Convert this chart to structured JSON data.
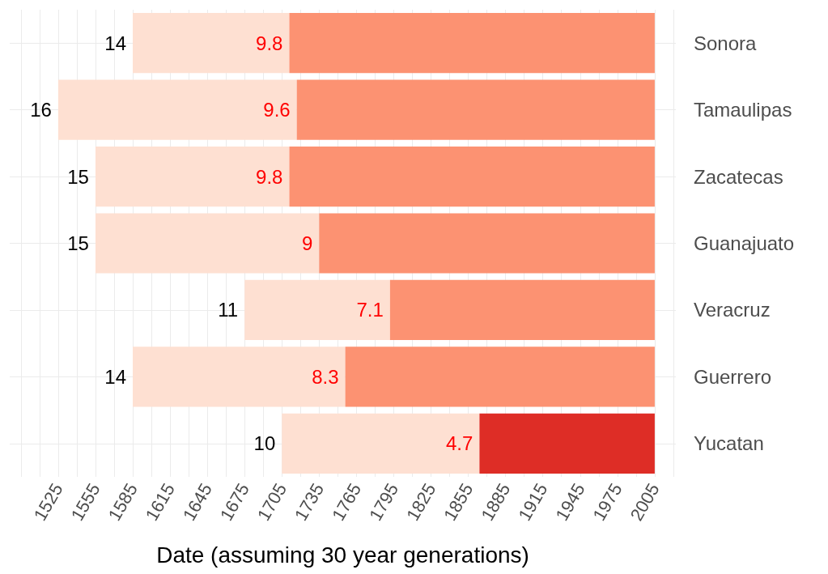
{
  "chart_data": {
    "type": "bar",
    "orientation": "horizontal",
    "xlabel": "Date (assuming 30 year generations)",
    "categories": [
      "Sonora",
      "Tamaulipas",
      "Zacatecas",
      "Guanajuato",
      "Veracruz",
      "Guerrero",
      "Yucatan"
    ],
    "series": [
      {
        "color": "#fee0d2",
        "base": [
          1585,
          1525,
          1555,
          1555,
          1675,
          1585,
          1705
        ],
        "values": [
          126,
          192,
          156,
          180,
          117,
          171,
          159
        ]
      },
      {
        "colors": [
          "#fc9272",
          "#fc9272",
          "#fc9272",
          "#fc9272",
          "#fc9272",
          "#fc9272",
          "#de2d26"
        ],
        "base": [
          1711,
          1717,
          1711,
          1735,
          1792,
          1756,
          1864
        ],
        "values": [
          294,
          288,
          294,
          270,
          213,
          249,
          141
        ]
      }
    ],
    "annotations": [
      {
        "text": "14",
        "x": 1585,
        "y": "Sonora"
      },
      {
        "text": "16",
        "x": 1525,
        "y": "Tamaulipas"
      },
      {
        "text": "15",
        "x": 1555,
        "y": "Zacatecas"
      },
      {
        "text": "15",
        "x": 1555,
        "y": "Guanajuato"
      },
      {
        "text": "11",
        "x": 1675,
        "y": "Veracruz"
      },
      {
        "text": "14",
        "x": 1585,
        "y": "Guerrero"
      },
      {
        "text": "10",
        "x": 1705,
        "y": "Yucatan"
      },
      {
        "text": "9.8",
        "x": 1711,
        "y": "Sonora"
      },
      {
        "text": "9.6",
        "x": 1717,
        "y": "Tamaulipas"
      },
      {
        "text": "9.8",
        "x": 1711,
        "y": "Zacatecas"
      },
      {
        "text": "9",
        "x": 1735,
        "y": "Guanajuato"
      },
      {
        "text": "7.1",
        "x": 1792,
        "y": "Veracruz"
      },
      {
        "text": "8.3",
        "x": 1756,
        "y": "Guerrero"
      },
      {
        "text": "4.7",
        "x": 1864,
        "y": "Yucatan"
      }
    ],
    "xlim": [
      1486,
      2022
    ],
    "xticks": [
      {
        "value": 1495,
        "label": null
      },
      {
        "value": 1510,
        "label": null
      },
      1525,
      {
        "value": 1540,
        "label": null
      },
      1555,
      {
        "value": 1570,
        "label": null
      },
      1585,
      {
        "value": 1600,
        "label": null
      },
      1615,
      {
        "value": 1630,
        "label": null
      },
      1645,
      {
        "value": 1660,
        "label": null
      },
      1675,
      {
        "value": 1690,
        "label": null
      },
      1705,
      {
        "value": 1720,
        "label": null
      },
      1735,
      {
        "value": 1750,
        "label": null
      },
      1765,
      {
        "value": 1780,
        "label": null
      },
      1795,
      {
        "value": 1810,
        "label": null
      },
      1825,
      {
        "value": 1840,
        "label": null
      },
      1855,
      {
        "value": 1870,
        "label": null
      },
      1885,
      {
        "value": 1900,
        "label": null
      },
      1915,
      {
        "value": 1930,
        "label": null
      },
      1945,
      {
        "value": 1960,
        "label": null
      },
      1975,
      {
        "value": 1990,
        "label": null
      },
      2005,
      {
        "value": 2020,
        "label": null
      }
    ],
    "grid": true
  }
}
